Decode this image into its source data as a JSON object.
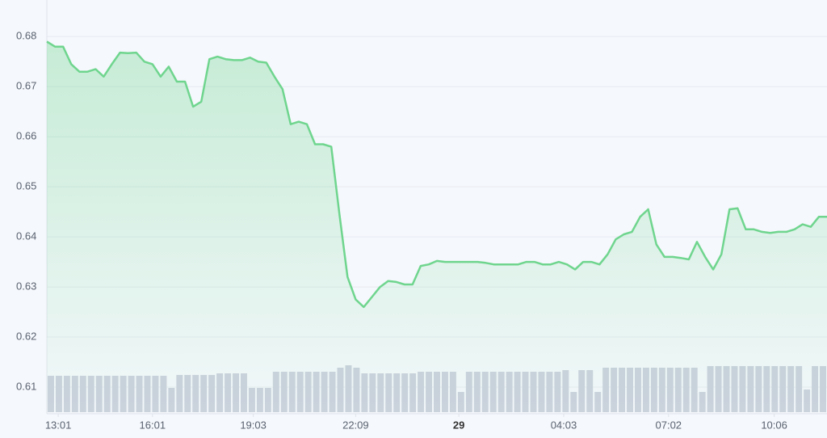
{
  "chart_data": {
    "type": "line",
    "ylim": [
      0.605,
      0.6865
    ],
    "yticks": [
      0.61,
      0.62,
      0.63,
      0.64,
      0.65,
      0.66,
      0.67,
      0.68
    ],
    "xlim": [
      0,
      96
    ],
    "xticks": [
      {
        "value": 1.4,
        "label": "13:01"
      },
      {
        "value": 13,
        "label": "16:01"
      },
      {
        "value": 25.4,
        "label": "19:03"
      },
      {
        "value": 38,
        "label": "22:09"
      },
      {
        "value": 50.7,
        "label": "29"
      },
      {
        "value": 63.6,
        "label": "04:03"
      },
      {
        "value": 76.5,
        "label": "07:02"
      },
      {
        "value": 89.5,
        "label": "10:06"
      }
    ],
    "grid": true,
    "color": "#6fd58e",
    "volume_color": "#ccd2de",
    "values": [
      0.679,
      0.678,
      0.678,
      0.6745,
      0.673,
      0.673,
      0.6735,
      0.672,
      0.6745,
      0.6768,
      0.6767,
      0.6768,
      0.675,
      0.6745,
      0.672,
      0.674,
      0.671,
      0.671,
      0.666,
      0.667,
      0.6755,
      0.676,
      0.6755,
      0.6753,
      0.6753,
      0.6758,
      0.675,
      0.6748,
      0.672,
      0.6695,
      0.6625,
      0.663,
      0.6625,
      0.6585,
      0.6585,
      0.658,
      0.6445,
      0.632,
      0.6275,
      0.626,
      0.628,
      0.63,
      0.6312,
      0.631,
      0.6305,
      0.6305,
      0.6342,
      0.6345,
      0.6352,
      0.635,
      0.635,
      0.635,
      0.635,
      0.635,
      0.6348,
      0.6345,
      0.6345,
      0.6345,
      0.6345,
      0.635,
      0.635,
      0.6345,
      0.6345,
      0.635,
      0.6345,
      0.6335,
      0.635,
      0.635,
      0.6345,
      0.6365,
      0.6395,
      0.6405,
      0.641,
      0.644,
      0.6455,
      0.6385,
      0.636,
      0.636,
      0.6358,
      0.6355,
      0.639,
      0.636,
      0.6335,
      0.6365,
      0.6455,
      0.6457,
      0.6415,
      0.6415,
      0.641,
      0.6408,
      0.641,
      0.641,
      0.6415,
      0.6425,
      0.642,
      0.644,
      0.644
    ],
    "volume": [
      45,
      45,
      45,
      45,
      45,
      45,
      45,
      45,
      45,
      45,
      45,
      45,
      45,
      45,
      45,
      30,
      46,
      46,
      46,
      46,
      46,
      48,
      48,
      48,
      48,
      30,
      30,
      30,
      50,
      50,
      50,
      50,
      50,
      50,
      50,
      50,
      55,
      58,
      55,
      48,
      48,
      48,
      48,
      48,
      48,
      48,
      50,
      50,
      50,
      50,
      50,
      25,
      50,
      50,
      50,
      50,
      50,
      50,
      50,
      50,
      50,
      50,
      50,
      50,
      52,
      25,
      52,
      52,
      25,
      55,
      55,
      55,
      55,
      55,
      55,
      55,
      55,
      55,
      55,
      55,
      55,
      25,
      57,
      57,
      57,
      57,
      57,
      57,
      57,
      57,
      57,
      57,
      57,
      57,
      28,
      57,
      57
    ]
  }
}
